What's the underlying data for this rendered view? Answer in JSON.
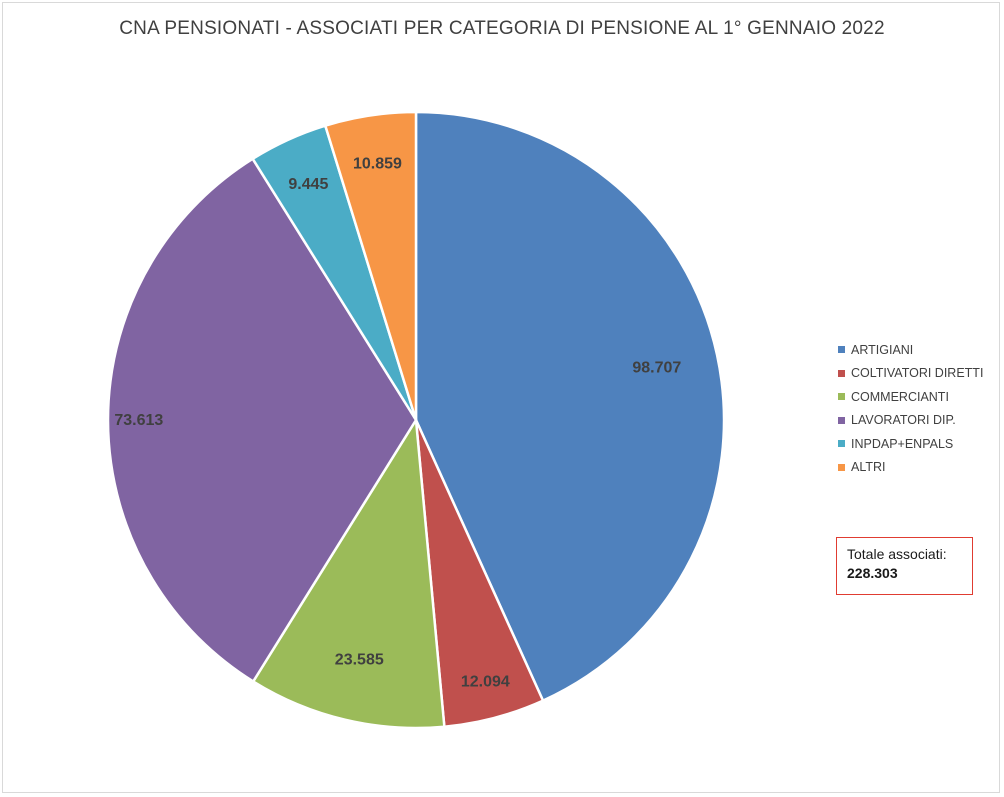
{
  "chart_data": {
    "type": "pie",
    "title": "CNA PENSIONATI - ASSOCIATI PER CATEGORIA DI PENSIONE AL 1° GENNAIO 2022",
    "categories": [
      "ARTIGIANI",
      "COLTIVATORI DIRETTI",
      "COMMERCIANTI",
      "LAVORATORI DIP.",
      "INPDAP+ENPALS",
      "ALTRI"
    ],
    "values": [
      98707,
      12094,
      23585,
      73613,
      9445,
      10859
    ],
    "value_labels": [
      "98.707",
      "12.094",
      "23.585",
      "73.613",
      "9.445",
      "10.859"
    ],
    "colors": [
      "#4f81bd",
      "#c0504d",
      "#9bbb59",
      "#8064a2",
      "#4bacc6",
      "#f79646"
    ],
    "legend_position": "right",
    "annotation": {
      "label": "Totale associati:",
      "value": "228.303"
    }
  }
}
